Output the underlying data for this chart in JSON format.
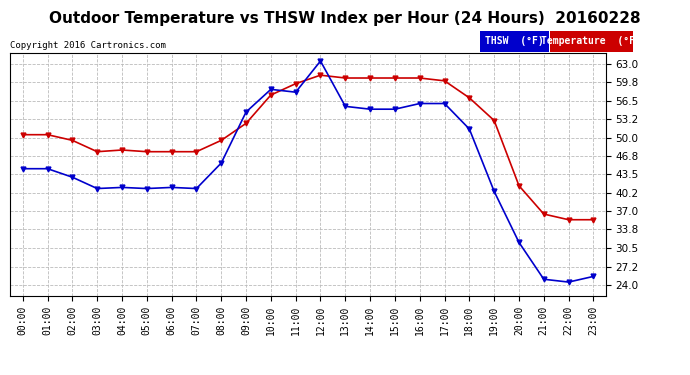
{
  "title": "Outdoor Temperature vs THSW Index per Hour (24 Hours)  20160228",
  "copyright": "Copyright 2016 Cartronics.com",
  "hours": [
    "00:00",
    "01:00",
    "02:00",
    "03:00",
    "04:00",
    "05:00",
    "06:00",
    "07:00",
    "08:00",
    "09:00",
    "10:00",
    "11:00",
    "12:00",
    "13:00",
    "14:00",
    "15:00",
    "16:00",
    "17:00",
    "18:00",
    "19:00",
    "20:00",
    "21:00",
    "22:00",
    "23:00"
  ],
  "temperature": [
    50.5,
    50.5,
    49.5,
    47.5,
    47.8,
    47.5,
    47.5,
    47.5,
    49.5,
    52.5,
    57.5,
    59.5,
    61.0,
    60.5,
    60.5,
    60.5,
    60.5,
    60.0,
    57.0,
    53.0,
    41.5,
    36.5,
    35.5,
    35.5
  ],
  "thsw": [
    44.5,
    44.5,
    43.0,
    41.0,
    41.2,
    41.0,
    41.2,
    41.0,
    45.5,
    54.5,
    58.5,
    58.0,
    63.5,
    55.5,
    55.0,
    55.0,
    56.0,
    56.0,
    51.5,
    40.5,
    31.5,
    25.0,
    24.5,
    25.5
  ],
  "ylim": [
    22.0,
    65.0
  ],
  "yticks": [
    24.0,
    27.2,
    30.5,
    33.8,
    37.0,
    40.2,
    43.5,
    46.8,
    50.0,
    53.2,
    56.5,
    59.8,
    63.0
  ],
  "temp_color": "#cc0000",
  "thsw_color": "#0000cc",
  "bg_color": "#ffffff",
  "plot_bg": "#ffffff",
  "grid_color": "#bbbbbb",
  "title_fontsize": 11,
  "legend_thsw_bg": "#0000cc",
  "legend_temp_bg": "#cc0000",
  "legend_thsw_text": "THSW  (°F)",
  "legend_temp_text": "Temperature  (°F)"
}
